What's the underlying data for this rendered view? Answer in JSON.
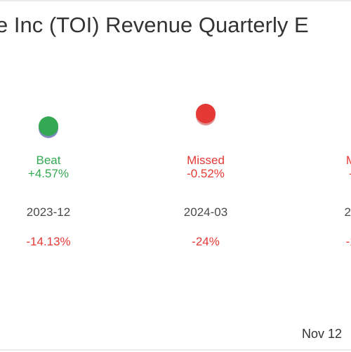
{
  "chart_data": {
    "type": "scatter",
    "title": "e Inc (TOI) Revenue Quarterly E",
    "footer_date": "Nov 12",
    "colors": {
      "beat": "#34a853",
      "beat_shadow": "#6d76b5",
      "missed": "#e53935",
      "missed_shadow": "#d98080",
      "negative": "#e53935"
    },
    "points": [
      {
        "status": "Beat",
        "surprise": "+4.57%",
        "period": "2023-12",
        "change": "-14.13%"
      },
      {
        "status": "Missed",
        "surprise": "-0.52%",
        "period": "2024-03",
        "change": "-24%"
      },
      {
        "status": "M",
        "surprise": "-",
        "period": "20",
        "change": "-1"
      }
    ]
  }
}
